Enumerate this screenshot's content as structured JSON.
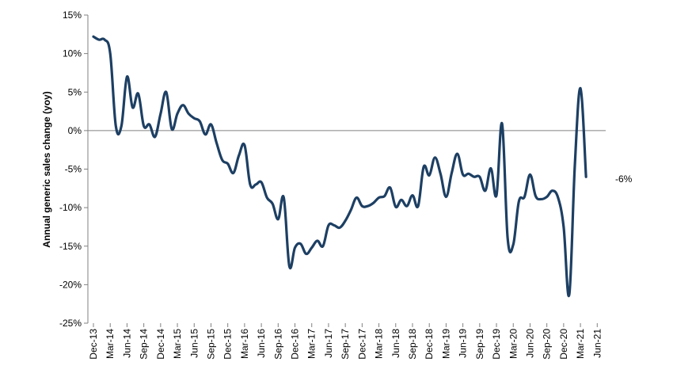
{
  "chart_data": {
    "type": "line",
    "title": "",
    "xlabel": "",
    "ylabel": "Annual generic sales change (yoy)",
    "ylim": [
      -25,
      15
    ],
    "y_ticks": [
      "15%",
      "10%",
      "5%",
      "0%",
      "-5%",
      "-10%",
      "-15%",
      "-20%",
      "-25%"
    ],
    "x_tick_labels": [
      "Dec-13",
      "Mar-14",
      "Jun-14",
      "Sep-14",
      "Dec-14",
      "Mar-15",
      "Jun-15",
      "Sep-15",
      "Dec-15",
      "Mar-16",
      "Jun-16",
      "Sep-16",
      "Dec-16",
      "Mar-17",
      "Jun-17",
      "Sep-17",
      "Dec-17",
      "Mar-18",
      "Jun-18",
      "Sep-18",
      "Dec-18",
      "Mar-19",
      "Jun-19",
      "Sep-19",
      "Dec-19",
      "Mar-20",
      "Jun-20",
      "Sep-20",
      "Dec-20",
      "Mar-21",
      "Jun-21"
    ],
    "line_color": "#1d3f63",
    "grid": false,
    "end_annotation": "-6%",
    "series": [
      {
        "values": [
          12.2,
          11.8,
          11.8,
          10,
          0.6,
          0.6,
          7,
          3,
          4.8,
          0.6,
          0.8,
          -0.8,
          2.2,
          5,
          0.2,
          2.2,
          3.3,
          2.2,
          1.6,
          1.2,
          -0.5,
          0.8,
          -1.6,
          -3.8,
          -4.3,
          -5.5,
          -3.2,
          -1.9,
          -7,
          -7,
          -6.7,
          -8.7,
          -9.5,
          -11.5,
          -8.7,
          -17.6,
          -15.2,
          -14.7,
          -16,
          -15.2,
          -14.3,
          -15,
          -12.3,
          -12.3,
          -12.6,
          -11.7,
          -10.3,
          -8.7,
          -9.8,
          -9.8,
          -9.4,
          -8.7,
          -8.5,
          -7.4,
          -9.9,
          -9,
          -9.8,
          -8.4,
          -9.8,
          -4.7,
          -5.8,
          -3.5,
          -5.6,
          -8.6,
          -5.5,
          -3,
          -5.7,
          -5.6,
          -6,
          -6,
          -7.8,
          -4.9,
          -8.4,
          0.9,
          -14,
          -14.8,
          -9.2,
          -8.6,
          -5.7,
          -8.5,
          -8.9,
          -8.6,
          -7.8,
          -8.7,
          -12.5,
          -21.3,
          -4.5,
          5.5,
          -6
        ]
      }
    ]
  }
}
